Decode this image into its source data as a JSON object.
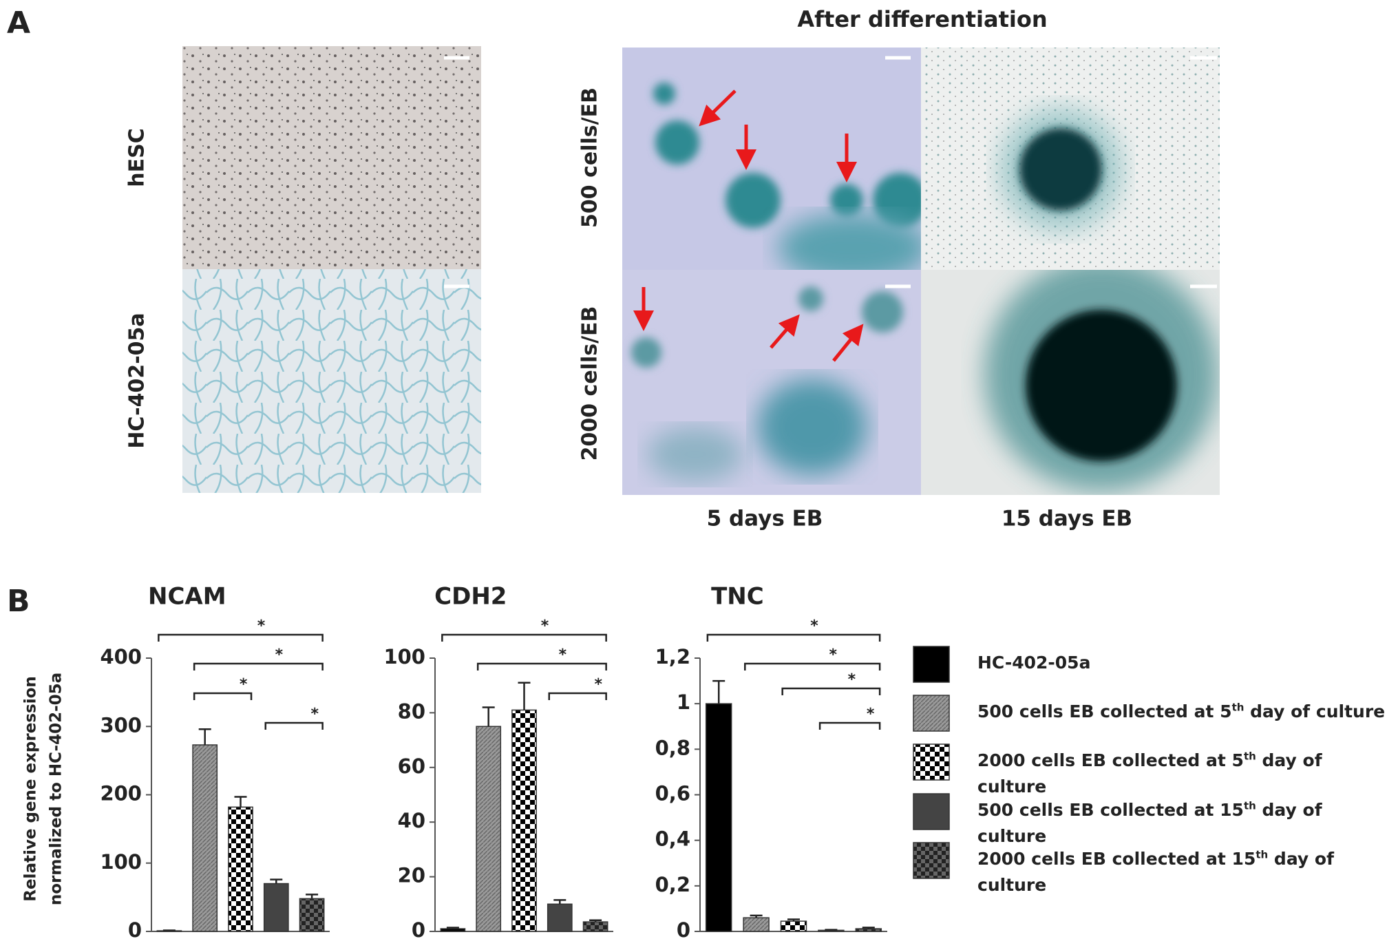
{
  "figure": {
    "panel_a": "A",
    "panel_b": "B",
    "after_title": "After differentiation",
    "row_left_1": "hESC",
    "row_left_2": "HC-402-05a",
    "row_right_1": "500 cells/EB",
    "row_right_2": "2000 cells/EB",
    "col_1": "5 days EB",
    "col_2": "15 days EB"
  },
  "ylabel": [
    "Relative gene expression",
    "normalized to HC-402-05a"
  ],
  "legend": {
    "entries": [
      {
        "name": "HC-402-05a",
        "color": "#000000",
        "pattern": "solid"
      },
      {
        "name": "500 cells EB collected at 5th day of culture",
        "color": "#8c8c8c",
        "pattern": "hatch"
      },
      {
        "name": "2000 cells EB collected at 5th day of culture",
        "color": "#000000",
        "pattern": "checker"
      },
      {
        "name": "500 cells EB collected at 15th day of culture",
        "color": "#444444",
        "pattern": "solid"
      },
      {
        "name": "2000 cells EB collected at 15th day of culture",
        "color": "#333333",
        "pattern": "darkchecker"
      }
    ]
  },
  "chart_data": [
    {
      "type": "bar",
      "title": "NCAM",
      "values": [
        1,
        273,
        182,
        70,
        48
      ],
      "errors": [
        0.5,
        23,
        15,
        6,
        6
      ],
      "ylim": [
        0,
        400
      ],
      "yticks": [
        0,
        100,
        200,
        300,
        400
      ],
      "significance": [
        {
          "bars": [
            0,
            4
          ],
          "label": "*"
        },
        {
          "bars": [
            1,
            4
          ],
          "label": "*"
        },
        {
          "bars": [
            1,
            2
          ],
          "label": "*"
        },
        {
          "bars": [
            3,
            4
          ],
          "label": "*"
        }
      ]
    },
    {
      "type": "bar",
      "title": "CDH2",
      "values": [
        1,
        75,
        81,
        10,
        3.5
      ],
      "errors": [
        0.4,
        7,
        10,
        1.5,
        0.6
      ],
      "ylim": [
        0,
        100
      ],
      "yticks": [
        0,
        20,
        40,
        60,
        80,
        100
      ],
      "significance": [
        {
          "bars": [
            0,
            4
          ],
          "label": "*"
        },
        {
          "bars": [
            1,
            4
          ],
          "label": "*"
        },
        {
          "bars": [
            3,
            4
          ],
          "label": "*"
        }
      ]
    },
    {
      "type": "bar",
      "title": "TNC",
      "values": [
        1,
        0.06,
        0.045,
        0.005,
        0.012
      ],
      "errors": [
        0.1,
        0.01,
        0.008,
        0.002,
        0.005
      ],
      "ylim": [
        0,
        1.2
      ],
      "yticks": [
        0,
        {
          "value": 0.2,
          "label": "0,2"
        },
        {
          "value": 0.4,
          "label": "0,4"
        },
        {
          "value": 0.6,
          "label": "0,6"
        },
        {
          "value": 0.8,
          "label": "0,8"
        },
        1,
        {
          "value": 1.2,
          "label": "1,2"
        }
      ],
      "significance": [
        {
          "bars": [
            0,
            4
          ],
          "label": "*"
        },
        {
          "bars": [
            1,
            4
          ],
          "label": "*"
        },
        {
          "bars": [
            2,
            4
          ],
          "label": "*"
        },
        {
          "bars": [
            3,
            4
          ],
          "label": "*"
        }
      ]
    }
  ]
}
